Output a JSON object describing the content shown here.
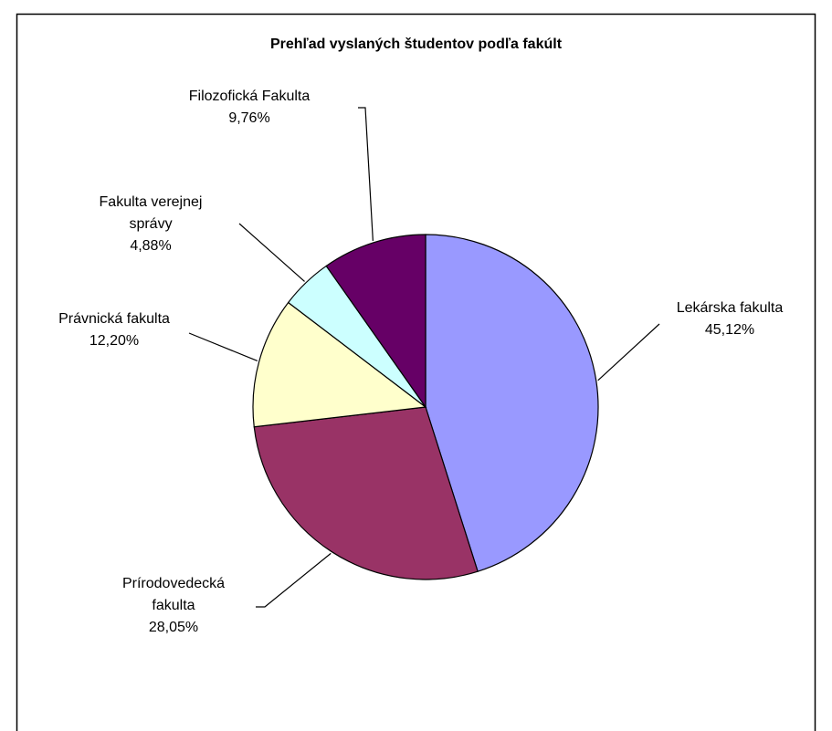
{
  "chart_data": {
    "type": "pie",
    "title": "Prehľad vyslaných študentov podľa fakúlt",
    "categories": [
      "Lekárska fakulta",
      "Prírodovedecká fakulta",
      "Právnická fakulta",
      "Fakulta verejnej správy",
      "Filozofická Fakulta"
    ],
    "values": [
      45.12,
      28.05,
      12.2,
      4.88,
      9.76
    ],
    "value_labels": [
      "45,12%",
      "28,05%",
      "12,20%",
      "4,88%",
      "9,76%"
    ],
    "colors": [
      "#9999ff",
      "#993366",
      "#ffffcc",
      "#ccffff",
      "#660066"
    ]
  }
}
